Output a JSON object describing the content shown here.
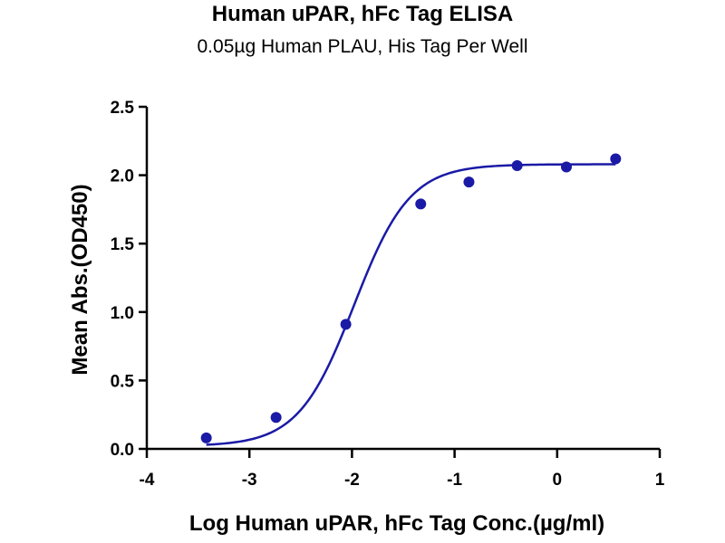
{
  "chart_data": {
    "type": "scatter",
    "title": "Human uPAR, hFc Tag ELISA",
    "subtitle": "0.05µg Human  PLAU, His Tag Per Well",
    "xlabel": "Log Human uPAR, hFc Tag Conc.(µg/ml)",
    "ylabel": "Mean Abs.(OD450)",
    "xlim": [
      -4,
      1
    ],
    "ylim": [
      0,
      2.5
    ],
    "x_ticks": [
      "-4",
      "-3",
      "-2",
      "-1",
      "0",
      "1"
    ],
    "y_ticks": [
      "0.0",
      "0.5",
      "1.0",
      "1.5",
      "2.0",
      "2.5"
    ],
    "grid": false,
    "legend": "none",
    "series": [
      {
        "points": [
          {
            "x": -3.42,
            "y": 0.08
          },
          {
            "x": -2.74,
            "y": 0.23
          },
          {
            "x": -2.06,
            "y": 0.91
          },
          {
            "x": -1.33,
            "y": 1.79
          },
          {
            "x": -0.86,
            "y": 1.95
          },
          {
            "x": -0.39,
            "y": 2.07
          },
          {
            "x": 0.09,
            "y": 2.06
          },
          {
            "x": 0.57,
            "y": 2.12
          }
        ],
        "color": "#1a1aa6"
      }
    ],
    "fit_curve": {
      "model": "4PL",
      "bottom": 0.02,
      "top": 2.08,
      "log_ec50": -1.98,
      "hill_slope": 1.6
    }
  }
}
